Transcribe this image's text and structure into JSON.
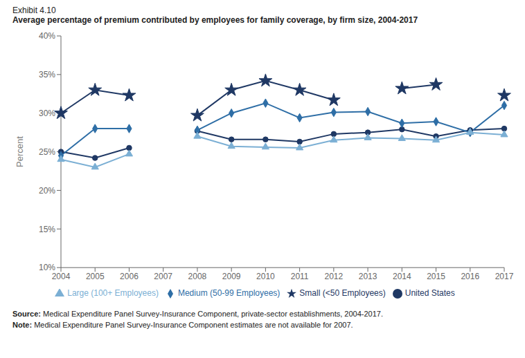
{
  "chart_data": {
    "type": "line",
    "subtitle": "Exhibit 4.10",
    "title": "Average percentage of premium contributed by employees for family coverage, by firm size, 2004-2017",
    "y_label": "Percent",
    "categories": [
      "2004",
      "2005",
      "2006",
      "2007",
      "2008",
      "2009",
      "2010",
      "2011",
      "2012",
      "2013",
      "2014",
      "2015",
      "2016",
      "2017"
    ],
    "series": [
      {
        "name": "United States",
        "color": "#1f3864",
        "marker": "circle",
        "values": [
          25.0,
          24.2,
          25.5,
          null,
          27.7,
          26.6,
          26.6,
          26.3,
          27.3,
          27.5,
          27.9,
          27.0,
          27.8,
          28.0
        ]
      },
      {
        "name": "Small (<50 Employees)",
        "color": "#1f3864",
        "marker": "star",
        "values": [
          30.0,
          33.0,
          32.3,
          null,
          29.7,
          33.0,
          34.2,
          33.0,
          31.7,
          null,
          33.2,
          33.7,
          null,
          32.3
        ]
      },
      {
        "name": "Medium (50-99 Employees)",
        "color": "#2e6ea6",
        "marker": "diamond",
        "values": [
          24.5,
          28.0,
          28.0,
          null,
          27.8,
          30.0,
          31.3,
          29.4,
          30.1,
          30.2,
          28.7,
          28.9,
          27.5,
          31.0
        ]
      },
      {
        "name": "Large (100+ Employees)",
        "color": "#7bafd4",
        "marker": "triangle",
        "values": [
          24.0,
          23.0,
          24.7,
          null,
          27.0,
          25.7,
          25.6,
          25.5,
          26.5,
          26.8,
          26.7,
          26.5,
          27.5,
          27.2
        ]
      }
    ],
    "ylim": [
      10,
      40
    ],
    "yticks": [
      {
        "value": 10,
        "label": "10%"
      },
      {
        "value": 15,
        "label": "15%"
      },
      {
        "value": 20,
        "label": "20%"
      },
      {
        "value": 25,
        "label": "25%"
      },
      {
        "value": 30,
        "label": "30%"
      },
      {
        "value": 35,
        "label": "35%"
      },
      {
        "value": 40,
        "label": "40%"
      }
    ],
    "grid": false,
    "legend": "bottom",
    "annotations": [
      "Source: Medical Expenditure Panel Survey-Insurance Component, private-sector establishments, 2004-2017.",
      "Note: Medical Expenditure Panel Survey-Insurance Component estimates are not available for 2007."
    ]
  }
}
